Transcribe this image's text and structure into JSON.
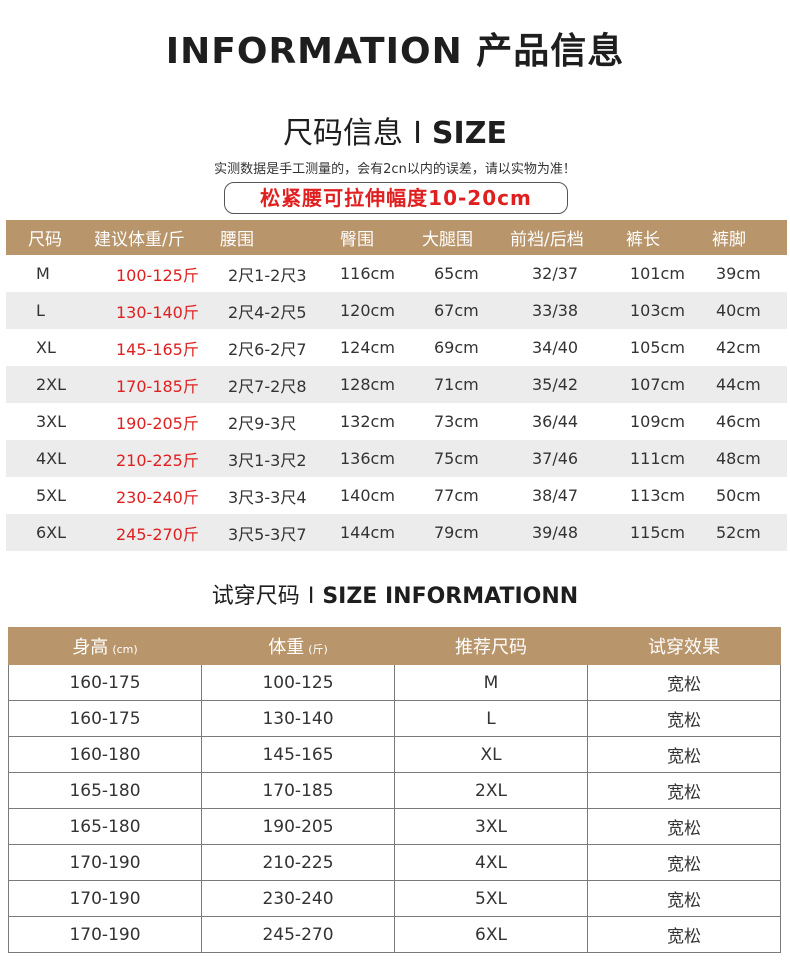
{
  "title": "INFORMATION 产品信息",
  "size_section": {
    "heading_cn": "尺码信息",
    "separator": "I",
    "heading_en": "SIZE",
    "note": "实测数据是手工测量的，会有2cn以内的误差，请以实物为准！",
    "waist_note": "松紧腰可拉伸幅度10-20cm",
    "headers": [
      "尺码",
      "建议体重/斤",
      "腰围",
      "臀围",
      "大腿围",
      "前裆/后档",
      "裤长",
      "裤脚"
    ],
    "rows": [
      [
        "M",
        "100-125斤",
        "2尺1-2尺3",
        "116cm",
        "65cm",
        "32/37",
        "101cm",
        "39cm"
      ],
      [
        "L",
        "130-140斤",
        "2尺4-2尺5",
        "120cm",
        "67cm",
        "33/38",
        "103cm",
        "40cm"
      ],
      [
        "XL",
        "145-165斤",
        "2尺6-2尺7",
        "124cm",
        "69cm",
        "34/40",
        "105cm",
        "42cm"
      ],
      [
        "2XL",
        "170-185斤",
        "2尺7-2尺8",
        "128cm",
        "71cm",
        "35/42",
        "107cm",
        "44cm"
      ],
      [
        "3XL",
        "190-205斤",
        "2尺9-3尺",
        "132cm",
        "73cm",
        "36/44",
        "109cm",
        "46cm"
      ],
      [
        "4XL",
        "210-225斤",
        "3尺1-3尺2",
        "136cm",
        "75cm",
        "37/46",
        "111cm",
        "48cm"
      ],
      [
        "5XL",
        "230-240斤",
        "3尺3-3尺4",
        "140cm",
        "77cm",
        "38/47",
        "113cm",
        "50cm"
      ],
      [
        "6XL",
        "245-270斤",
        "3尺5-3尺7",
        "144cm",
        "79cm",
        "39/48",
        "115cm",
        "52cm"
      ]
    ],
    "header_bg": "#b8956a",
    "weight_color": "#e02020"
  },
  "tryon_section": {
    "heading_cn": "试穿尺码",
    "separator": "I",
    "heading_en": "SIZE INFORMATIONN",
    "headers": [
      {
        "label": "身高",
        "unit": "(cm)"
      },
      {
        "label": "体重",
        "unit": "(斤)"
      },
      {
        "label": "推荐尺码",
        "unit": ""
      },
      {
        "label": "试穿效果",
        "unit": ""
      }
    ],
    "rows": [
      [
        "160-175",
        "100-125",
        "M",
        "宽松"
      ],
      [
        "160-175",
        "130-140",
        "L",
        "宽松"
      ],
      [
        "160-180",
        "145-165",
        "XL",
        "宽松"
      ],
      [
        "165-180",
        "170-185",
        "2XL",
        "宽松"
      ],
      [
        "165-180",
        "190-205",
        "3XL",
        "宽松"
      ],
      [
        "170-190",
        "210-225",
        "4XL",
        "宽松"
      ],
      [
        "170-190",
        "230-240",
        "5XL",
        "宽松"
      ],
      [
        "170-190",
        "245-270",
        "6XL",
        "宽松"
      ]
    ]
  }
}
